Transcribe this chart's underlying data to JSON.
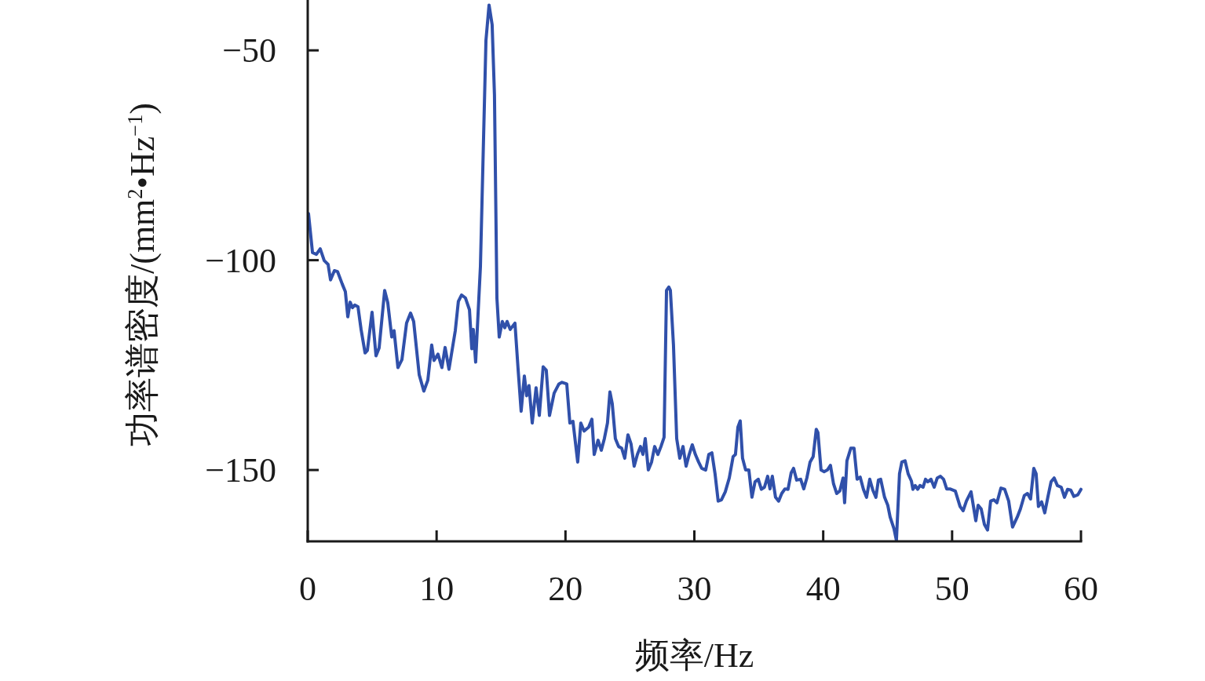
{
  "chart_data": {
    "type": "line",
    "xlabel": "频率/Hz",
    "ylabel": "功率谱密度/(mm$^{2}$•Hz$^{−1}$)",
    "xlim": [
      0,
      60
    ],
    "ylim": [
      -167,
      -38
    ],
    "xticks": [
      0,
      10,
      20,
      30,
      40,
      50,
      60
    ],
    "yticks": [
      -50,
      -100,
      -150
    ],
    "series": [
      {
        "color": "#3050aa",
        "x": [
          0.06,
          0.37,
          0.67,
          0.97,
          1.28,
          1.58,
          1.77,
          2.07,
          2.31,
          2.68,
          2.92,
          3.11,
          3.29,
          3.47,
          3.65,
          3.9,
          4.14,
          4.45,
          4.63,
          4.99,
          5.3,
          5.54,
          5.97,
          6.21,
          6.52,
          6.7,
          7.0,
          7.31,
          7.67,
          7.98,
          8.22,
          8.65,
          9.01,
          9.32,
          9.62,
          9.8,
          10.11,
          10.41,
          10.66,
          10.96,
          11.45,
          11.69,
          11.94,
          12.24,
          12.55,
          12.73,
          12.85,
          13.03,
          13.4,
          13.83,
          14.07,
          14.31,
          14.49,
          14.68,
          14.86,
          15.1,
          15.29,
          15.47,
          15.71,
          16.08,
          16.32,
          16.56,
          16.81,
          16.99,
          17.17,
          17.42,
          17.72,
          17.97,
          18.27,
          18.51,
          18.76,
          19.12,
          19.49,
          19.73,
          20.1,
          20.34,
          20.58,
          20.95,
          21.19,
          21.44,
          21.8,
          22.05,
          22.23,
          22.53,
          22.78,
          23.02,
          23.26,
          23.45,
          23.63,
          23.87,
          24.12,
          24.36,
          24.6,
          24.85,
          25.09,
          25.33,
          25.58,
          25.82,
          26.01,
          26.19,
          26.43,
          26.68,
          26.92,
          27.17,
          27.41,
          27.65,
          27.84,
          28.02,
          28.14,
          28.38,
          28.63,
          28.87,
          29.12,
          29.36,
          29.6,
          29.84,
          30.08,
          30.33,
          30.57,
          30.88,
          31.12,
          31.36,
          31.61,
          31.85,
          32.1,
          32.4,
          32.71,
          33.01,
          33.19,
          33.38,
          33.56,
          33.74,
          33.98,
          34.23,
          34.47,
          34.71,
          34.96,
          35.2,
          35.44,
          35.69,
          35.87,
          36.05,
          36.3,
          36.54,
          36.78,
          37.03,
          37.27,
          37.51,
          37.7,
          37.94,
          38.25,
          38.49,
          38.73,
          38.98,
          39.22,
          39.46,
          39.59,
          39.83,
          40.07,
          40.32,
          40.56,
          40.8,
          41.05,
          41.29,
          41.54,
          41.66,
          41.84,
          42.14,
          42.39,
          42.63,
          42.87,
          43.12,
          43.36,
          43.61,
          43.85,
          44.09,
          44.28,
          44.46,
          44.76,
          45.01,
          45.19,
          45.49,
          45.68,
          45.92,
          46.1,
          46.35,
          46.59,
          46.84,
          46.96,
          47.14,
          47.33,
          47.51,
          47.75,
          47.94,
          48.12,
          48.36,
          48.61,
          48.85,
          49.1,
          49.34,
          49.58,
          49.83,
          50.25,
          50.62,
          50.86,
          51.11,
          51.47,
          51.84,
          52.02,
          52.26,
          52.51,
          52.75,
          52.99,
          53.24,
          53.48,
          53.79,
          54.08,
          54.39,
          54.69,
          55.06,
          55.3,
          55.6,
          55.85,
          56.09,
          56.34,
          56.52,
          56.7,
          56.95,
          57.19,
          57.44,
          57.68,
          57.92,
          58.17,
          58.47,
          58.72,
          58.96,
          59.21,
          59.45,
          59.76,
          60.0
        ],
        "values": [
          -88.9,
          -98.2,
          -98.6,
          -97.3,
          -100.1,
          -101.0,
          -104.7,
          -102.5,
          -102.7,
          -105.7,
          -107.5,
          -113.5,
          -110.0,
          -111.3,
          -110.7,
          -111.1,
          -116.5,
          -122.1,
          -121.5,
          -112.4,
          -122.8,
          -120.9,
          -107.2,
          -110.1,
          -118.3,
          -116.8,
          -125.6,
          -123.7,
          -115.0,
          -112.6,
          -114.6,
          -127.3,
          -131.2,
          -128.6,
          -120.2,
          -123.9,
          -122.4,
          -125.6,
          -120.8,
          -126.0,
          -116.8,
          -109.8,
          -108.3,
          -109.0,
          -111.8,
          -121.1,
          -116.5,
          -124.3,
          -101.6,
          -47.6,
          -39.2,
          -43.9,
          -60.6,
          -109.0,
          -118.3,
          -114.6,
          -116.1,
          -114.6,
          -116.5,
          -115.0,
          -125.8,
          -136.0,
          -127.6,
          -132.3,
          -129.9,
          -138.8,
          -130.4,
          -137.0,
          -125.4,
          -126.2,
          -137.0,
          -131.7,
          -129.5,
          -129.1,
          -129.5,
          -138.8,
          -138.4,
          -148.1,
          -138.8,
          -140.7,
          -139.8,
          -137.9,
          -146.3,
          -142.9,
          -145.3,
          -142.5,
          -138.8,
          -131.4,
          -134.2,
          -142.5,
          -144.4,
          -144.8,
          -147.2,
          -141.6,
          -143.8,
          -149.1,
          -146.3,
          -144.4,
          -146.3,
          -142.5,
          -150.0,
          -148.1,
          -144.4,
          -146.3,
          -144.4,
          -142.2,
          -107.2,
          -106.4,
          -107.2,
          -120.2,
          -142.5,
          -147.2,
          -144.4,
          -149.1,
          -146.3,
          -144.0,
          -146.3,
          -148.1,
          -149.6,
          -150.0,
          -146.3,
          -145.9,
          -151.0,
          -157.4,
          -157.1,
          -155.2,
          -151.9,
          -146.8,
          -146.3,
          -139.8,
          -138.3,
          -147.2,
          -150.0,
          -150.0,
          -156.5,
          -152.8,
          -152.2,
          -154.6,
          -154.1,
          -151.5,
          -154.5,
          -151.5,
          -156.5,
          -157.4,
          -155.6,
          -154.5,
          -154.6,
          -150.7,
          -149.6,
          -152.4,
          -152.2,
          -154.5,
          -151.9,
          -148.1,
          -146.8,
          -140.3,
          -141.1,
          -150.0,
          -150.4,
          -150.0,
          -148.9,
          -153.3,
          -155.6,
          -155.0,
          -151.9,
          -157.8,
          -147.8,
          -144.8,
          -144.8,
          -152.2,
          -151.7,
          -154.6,
          -156.5,
          -152.2,
          -154.8,
          -156.5,
          -152.4,
          -152.2,
          -156.5,
          -158.4,
          -161.2,
          -164.0,
          -166.8,
          -150.9,
          -148.1,
          -147.8,
          -150.9,
          -152.6,
          -154.6,
          -153.7,
          -154.6,
          -153.7,
          -154.1,
          -152.2,
          -152.8,
          -152.2,
          -154.1,
          -151.9,
          -151.5,
          -152.2,
          -154.5,
          -154.5,
          -155.0,
          -158.7,
          -159.7,
          -157.4,
          -155.2,
          -162.1,
          -158.4,
          -159.3,
          -163.0,
          -164.3,
          -157.4,
          -157.1,
          -157.8,
          -154.3,
          -154.6,
          -157.4,
          -163.6,
          -161.2,
          -159.3,
          -156.1,
          -155.6,
          -156.9,
          -149.6,
          -150.9,
          -158.7,
          -157.6,
          -160.2,
          -156.3,
          -152.8,
          -151.9,
          -153.7,
          -154.1,
          -156.5,
          -154.6,
          -154.8,
          -156.3,
          -155.9,
          -154.6
        ]
      }
    ]
  }
}
